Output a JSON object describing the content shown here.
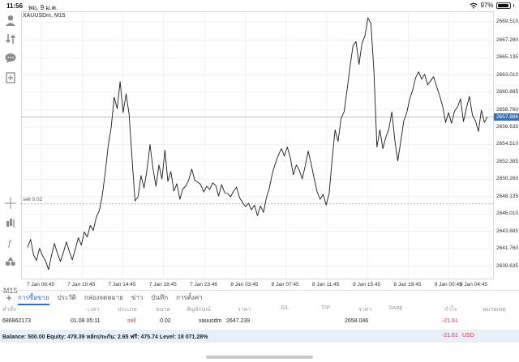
{
  "status": {
    "time": "11:56",
    "date": "พฤ. 9 ม.ค.",
    "battery": "97%",
    "battery_level": 0.97
  },
  "toolbar": {
    "icons": [
      "person-icon",
      "sort-icon",
      "chat-icon",
      "add-document-icon",
      "crosshair-icon",
      "indicators-icon",
      "function-icon",
      "objects-icon"
    ],
    "timeframe": "M15"
  },
  "chart": {
    "symbol": "XAUUSDm, M15",
    "order_line": "sell 0.02",
    "current_price": "2657.886",
    "price_ticks": [
      "2669.510",
      "2667.260",
      "2665.135",
      "2663.010",
      "2660.885",
      "2658.760",
      "2656.635",
      "2654.510",
      "2652.385",
      "2650.260",
      "2648.135",
      "2646.010",
      "2643.885",
      "2641.760",
      "2639.635"
    ],
    "time_ticks": [
      "7 Jan 06:45",
      "7 Jan 10:45",
      "7 Jan 14:45",
      "7 Jan 18:45",
      "7 Jan 23:46",
      "8 Jan 03:45",
      "8 Jan 07:45",
      "8 Jan 11:45",
      "8 Jan 15:45",
      "8 Jan 19:45",
      "9 Jan 00:45",
      "9 Jan 04:45"
    ]
  },
  "chart_data": {
    "type": "line",
    "title": "XAUUSDm, M15",
    "xlabel": "",
    "ylabel": "",
    "ylim": [
      2638.0,
      2670.8
    ],
    "current_price": 2657.886,
    "sell_order_price": 2647.239,
    "values": [
      2641.9,
      2642.9,
      2641.0,
      2640.3,
      2641.8,
      2640.9,
      2640.3,
      2639.2,
      2640.9,
      2642.4,
      2641.2,
      2640.2,
      2641.3,
      2642.6,
      2641.4,
      2640.4,
      2641.7,
      2643.1,
      2642.2,
      2643.8,
      2643.2,
      2644.6,
      2644.0,
      2645.6,
      2646.4,
      2648.2,
      2651.0,
      2654.3,
      2656.6,
      2660.3,
      2658.9,
      2662.2,
      2658.4,
      2660.7,
      2658.2,
      2652.7,
      2647.6,
      2648.1,
      2650.7,
      2649.2,
      2651.4,
      2654.5,
      2651.6,
      2649.4,
      2652.0,
      2650.3,
      2653.8,
      2650.0,
      2651.2,
      2648.8,
      2649.7,
      2647.8,
      2649.1,
      2649.4,
      2650.2,
      2651.5,
      2650.1,
      2649.9,
      2649.6,
      2648.7,
      2649.4,
      2649.0,
      2649.8,
      2649.5,
      2648.2,
      2649.6,
      2648.6,
      2648.5,
      2648.1,
      2648.8,
      2649.3,
      2648.0,
      2647.4,
      2646.9,
      2647.3,
      2646.5,
      2647.1,
      2645.8,
      2647.0,
      2646.2,
      2648.0,
      2649.2,
      2651.0,
      2652.2,
      2653.2,
      2654.0,
      2653.1,
      2654.2,
      2652.9,
      2650.8,
      2652.0,
      2651.4,
      2650.3,
      2651.9,
      2653.7,
      2652.1,
      2650.3,
      2648.7,
      2647.8,
      2648.4,
      2647.1,
      2648.5,
      2652.6,
      2656.3,
      2654.9,
      2657.7,
      2658.5,
      2661.2,
      2664.0,
      2666.6,
      2667.1,
      2664.3,
      2666.9,
      2667.8,
      2670.0,
      2669.3,
      2663.5,
      2654.2,
      2656.3,
      2654.0,
      2655.4,
      2656.4,
      2658.5,
      2655.0,
      2652.5,
      2654.9,
      2657.4,
      2658.4,
      2660.1,
      2661.2,
      2662.7,
      2663.4,
      2662.5,
      2663.1,
      2661.8,
      2662.3,
      2662.8,
      2661.6,
      2660.5,
      2659.2,
      2657.2,
      2658.4,
      2657.1,
      2658.6,
      2659.1,
      2660.1,
      2657.3,
      2659.0,
      2660.4,
      2658.1,
      2657.4,
      2656.1,
      2658.7,
      2657.2,
      2657.9
    ]
  },
  "tabs": {
    "add": "+",
    "items": [
      "การซื้อขาย",
      "ประวัติ",
      "กล่องจดหมาย",
      "ข่าว",
      "บันทึก",
      "การตั้งค่า"
    ]
  },
  "table": {
    "headers": [
      "คำสั่ง",
      "เวลา",
      "ประเภท",
      "ขนาด",
      "สัญลักษณ์",
      "ราคา",
      "S/L",
      "T/P",
      "ราคา",
      "Swap",
      "กำไร",
      "หมายเหตุ"
    ],
    "row": {
      "order": "686862173",
      "time": "01.08 05:11",
      "type": "sell",
      "volume": "0.02",
      "symbol": "xauusdm",
      "open_price": "2647.239",
      "current_price": "2658.046",
      "profit": "-21.61"
    }
  },
  "balance": {
    "text": "Balance: 500.00 Equity: 478.39 หลักประกัน: 2.65 ฟรี: 475.74 Level: 18 071.28%",
    "profit": "-21.61",
    "currency": "USD"
  },
  "colors": {
    "accent": "#2a6fc7",
    "price_label_bg": "#3d6fb0",
    "negative": "#d43a3a",
    "grid": "#e6e6e6",
    "balance_bg": "#e9eef8"
  }
}
